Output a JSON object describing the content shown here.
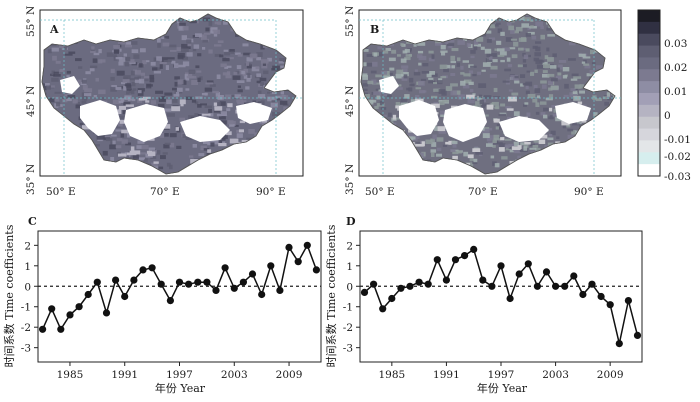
{
  "figure": {
    "panel_labels": [
      "A",
      "B",
      "C",
      "D"
    ],
    "map_x_ticks": [
      "50° E",
      "70° E",
      "90° E"
    ],
    "map_y_ticks": [
      "55° N",
      "45° N",
      "35° N"
    ],
    "colorbar": {
      "labels": [
        "0.03",
        "0.02",
        "0.01",
        "0",
        "-0.01",
        "-0.02",
        "-0.03"
      ],
      "colors": [
        "#1c1c24",
        "#303042",
        "#4a4a5e",
        "#5e5e72",
        "#6b6b80",
        "#7c7a90",
        "#8e8da4",
        "#a29fb6",
        "#b5b3c2",
        "#c7c7cd",
        "#d6d6dc",
        "#e3e6e8",
        "#d6eeee",
        "#ffffff"
      ]
    },
    "map_colors": {
      "A": {
        "dominant": "#6b6b80",
        "mix": [
          "#5e5e72",
          "#7c7a90",
          "#8e8da4",
          "#4a4a5e"
        ],
        "south_patches": "#b5b3c2"
      },
      "B": {
        "dominant": "#6f6f80",
        "mix": [
          "#5e5e72",
          "#7c7a90",
          "#a2b0b0",
          "#8e9a9a"
        ],
        "south_patches": "#c7c7cd"
      }
    },
    "ts_y_ticks": [
      "2",
      "1",
      "0",
      "-1",
      "-2",
      "-3"
    ],
    "ts_x_ticks": [
      "1985",
      "1991",
      "1997",
      "2003",
      "2009"
    ],
    "ts_ylabel": "时间系数 Time coefficients",
    "ts_xlabel": "年份 Year"
  },
  "chart_data": [
    {
      "panel": "C",
      "type": "line",
      "x": [
        1982,
        1983,
        1984,
        1985,
        1986,
        1987,
        1988,
        1989,
        1990,
        1991,
        1992,
        1993,
        1994,
        1995,
        1996,
        1997,
        1998,
        1999,
        2000,
        2001,
        2002,
        2003,
        2004,
        2005,
        2006,
        2007,
        2008,
        2009,
        2010,
        2011,
        2012
      ],
      "values": [
        -2.1,
        -1.1,
        -2.1,
        -1.4,
        -1.0,
        -0.4,
        0.2,
        -1.3,
        0.3,
        -0.5,
        0.3,
        0.8,
        0.9,
        0.1,
        -0.7,
        0.2,
        0.1,
        0.2,
        0.2,
        -0.2,
        0.9,
        -0.1,
        0.2,
        0.6,
        -0.4,
        1.0,
        -0.2,
        1.9,
        1.2,
        2.0,
        0.8
      ],
      "xlim": [
        1981.5,
        2012.5
      ],
      "ylim": [
        -3.7,
        2.7
      ],
      "reference_line": 0,
      "xlabel": "年份 Year",
      "ylabel": "时间系数 Time coefficients"
    },
    {
      "panel": "D",
      "type": "line",
      "x": [
        1982,
        1983,
        1984,
        1985,
        1986,
        1987,
        1988,
        1989,
        1990,
        1991,
        1992,
        1993,
        1994,
        1995,
        1996,
        1997,
        1998,
        1999,
        2000,
        2001,
        2002,
        2003,
        2004,
        2005,
        2006,
        2007,
        2008,
        2009,
        2010,
        2011,
        2012
      ],
      "values": [
        -0.3,
        0.1,
        -1.1,
        -0.6,
        -0.1,
        0.0,
        0.2,
        0.1,
        1.3,
        0.3,
        1.3,
        1.5,
        1.8,
        0.3,
        0.0,
        1.0,
        -0.6,
        0.6,
        1.1,
        0.0,
        0.7,
        0.0,
        0.0,
        0.5,
        -0.4,
        0.1,
        -0.5,
        -0.9,
        -2.8,
        -0.7,
        -2.4
      ],
      "xlim": [
        1981.5,
        2012.5
      ],
      "ylim": [
        -3.7,
        2.7
      ],
      "reference_line": 0,
      "xlabel": "年份 Year",
      "ylabel": "时间系数 Time coefficients"
    }
  ]
}
